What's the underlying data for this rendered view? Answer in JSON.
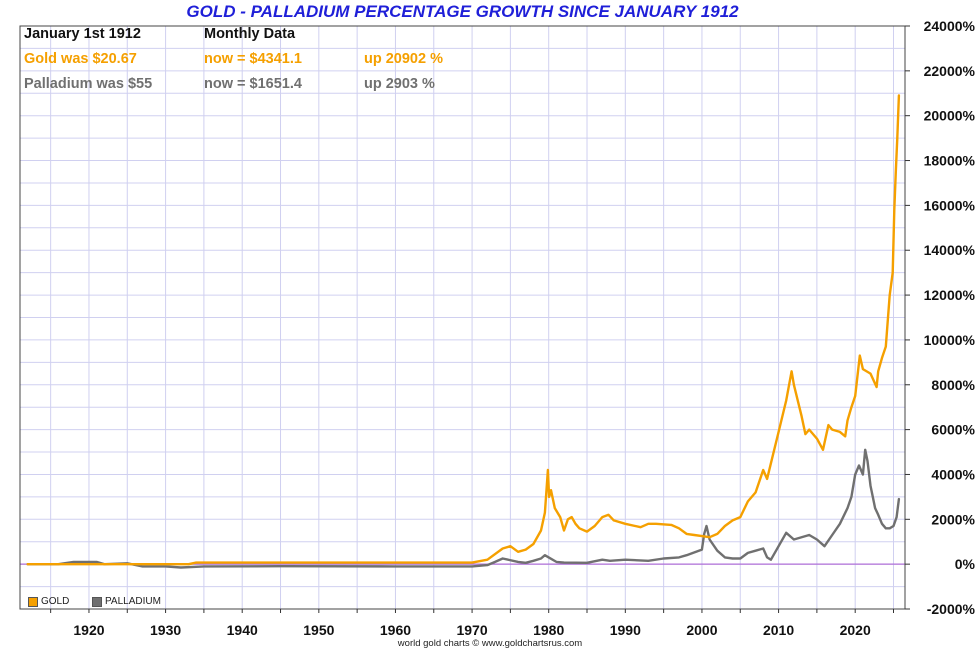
{
  "title": "GOLD - PALLADIUM PERCENTAGE GROWTH SINCE JANUARY 1912",
  "info": {
    "date_label": "January 1st 1912",
    "freq_label": "Monthly Data",
    "gold_was": "Gold was $20.67",
    "gold_now": "now = $4341.1",
    "gold_up": "up 20902 %",
    "pal_was": "Palladium was $55",
    "pal_now": "now = $1651.4",
    "pal_up": "up 2903 %"
  },
  "legend": {
    "gold": "GOLD",
    "palladium": "PALLADIUM"
  },
  "footer": "world gold charts © www.goldchartsrus.com",
  "colors": {
    "gold": "#f5a000",
    "palladium": "#707070",
    "zero_line": "#b070d8",
    "grid": "#d0d0f0",
    "title": "#1f1fd8"
  },
  "chart_data": {
    "type": "line",
    "title": "GOLD - PALLADIUM PERCENTAGE GROWTH SINCE JANUARY 1912",
    "xlabel": "",
    "ylabel": "",
    "xlim": [
      1911,
      2026.5
    ],
    "ylim": [
      -2000,
      24000
    ],
    "x_ticks": [
      1920,
      1930,
      1940,
      1950,
      1960,
      1970,
      1980,
      1990,
      2000,
      2010,
      2020
    ],
    "y_ticks": [
      -2000,
      0,
      2000,
      4000,
      6000,
      8000,
      10000,
      12000,
      14000,
      16000,
      18000,
      20000,
      22000,
      24000
    ],
    "y_tick_suffix": "%",
    "series": [
      {
        "name": "GOLD",
        "color": "#f5a000",
        "x": [
          1912,
          1933,
          1934,
          1960,
          1968,
          1970,
          1972,
          1974,
          1975,
          1976,
          1977,
          1978,
          1979,
          1979.5,
          1979.9,
          1980.05,
          1980.3,
          1980.8,
          1981.5,
          1982,
          1982.5,
          1983,
          1983.5,
          1984,
          1985,
          1986,
          1987,
          1987.8,
          1988.5,
          1990,
          1992,
          1993,
          1994,
          1996,
          1997,
          1998,
          1999,
          2000,
          2001,
          2002,
          2003,
          2004,
          2005,
          2006,
          2007,
          2008,
          2008.5,
          2009,
          2010,
          2011,
          2011.7,
          2012,
          2013,
          2013.5,
          2014,
          2015,
          2015.8,
          2016.5,
          2017,
          2018,
          2018.7,
          2019,
          2019.5,
          2020,
          2020.6,
          2021,
          2022,
          2022.8,
          2023,
          2023.5,
          2024,
          2024.5,
          2024.9,
          2025.1,
          2025.3,
          2025.5,
          2025.7
        ],
        "values": [
          0,
          0,
          70,
          70,
          70,
          70,
          200,
          700,
          800,
          550,
          650,
          900,
          1500,
          2300,
          4200,
          3000,
          3300,
          2500,
          2100,
          1500,
          2000,
          2100,
          1800,
          1600,
          1450,
          1700,
          2100,
          2200,
          1950,
          1800,
          1650,
          1800,
          1800,
          1750,
          1600,
          1350,
          1300,
          1250,
          1200,
          1350,
          1700,
          1950,
          2100,
          2800,
          3200,
          4200,
          3800,
          4500,
          5900,
          7300,
          8600,
          8000,
          6600,
          5800,
          6000,
          5600,
          5100,
          6200,
          6000,
          5900,
          5700,
          6400,
          7000,
          7500,
          9300,
          8700,
          8500,
          7900,
          8600,
          9200,
          9700,
          12000,
          13000,
          15800,
          17500,
          19000,
          20900
        ]
      },
      {
        "name": "PALLADIUM",
        "color": "#707070",
        "x": [
          1912,
          1916,
          1918,
          1921,
          1922,
          1925,
          1927,
          1930,
          1932,
          1935,
          1945,
          1960,
          1970,
          1972,
          1973,
          1974,
          1976,
          1977,
          1978,
          1979,
          1979.5,
          1980,
          1981,
          1982,
          1985,
          1987,
          1988,
          1990,
          1993,
          1995,
          1997,
          1998,
          2000,
          2000.3,
          2000.6,
          2001,
          2002,
          2003,
          2004,
          2005,
          2006,
          2007,
          2008,
          2008.5,
          2009,
          2010,
          2011,
          2012,
          2014,
          2015,
          2016,
          2017,
          2018,
          2019,
          2019.5,
          2020,
          2020.5,
          2021,
          2021.3,
          2021.6,
          2022,
          2022.3,
          2022.6,
          2023,
          2023.5,
          2024,
          2024.5,
          2025,
          2025.4,
          2025.7
        ],
        "values": [
          0,
          0,
          100,
          100,
          0,
          40,
          -100,
          -100,
          -150,
          -100,
          -90,
          -100,
          -100,
          -40,
          100,
          250,
          100,
          60,
          150,
          250,
          400,
          300,
          100,
          70,
          60,
          200,
          150,
          200,
          150,
          250,
          300,
          400,
          650,
          1350,
          1700,
          1100,
          600,
          300,
          250,
          250,
          500,
          600,
          700,
          300,
          200,
          800,
          1400,
          1100,
          1300,
          1100,
          800,
          1300,
          1800,
          2500,
          3000,
          4000,
          4400,
          4000,
          5100,
          4600,
          3500,
          3000,
          2500,
          2200,
          1800,
          1600,
          1600,
          1700,
          2100,
          2903
        ]
      }
    ],
    "legend": [
      "GOLD",
      "PALLADIUM"
    ],
    "legend_position": "bottom-left",
    "grid": true
  }
}
